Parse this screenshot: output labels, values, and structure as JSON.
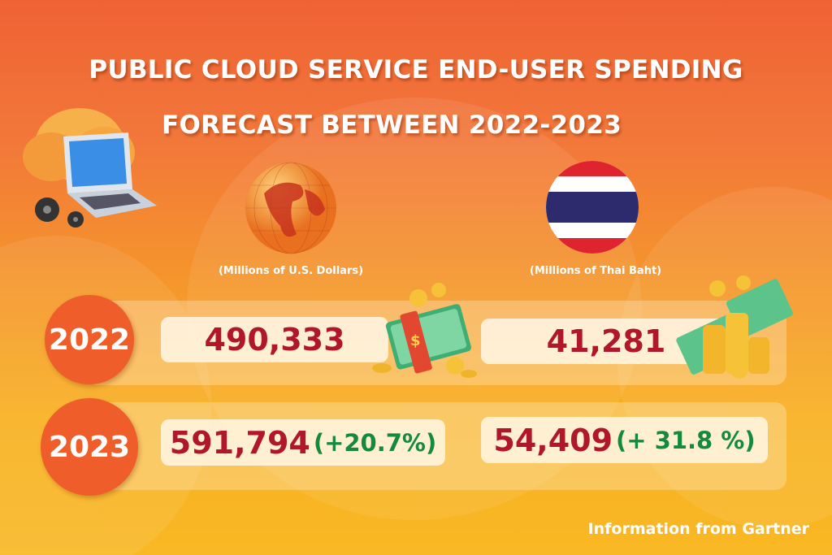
{
  "title": {
    "line1": "PUBLIC CLOUD SERVICE END-USER SPENDING",
    "line2": "FORECAST BETWEEN 2022-2023"
  },
  "columns": [
    {
      "unit": "(Millions of U.S. Dollars)",
      "icon": "globe-icon"
    },
    {
      "unit": "(Millions of Thai Baht)",
      "icon": "thailand-flag-icon"
    }
  ],
  "rows": [
    {
      "year": "2022",
      "usd": "490,333",
      "thb": "41,281"
    },
    {
      "year": "2023",
      "usd": "591,794",
      "usd_change": "(+20.7%)",
      "thb": "54,409",
      "thb_change": "(+ 31.8 %)"
    }
  ],
  "footer": "Information from Gartner",
  "colors": {
    "value": "#b0172a",
    "change": "#158a3c",
    "year_badge": "#ef5e2a"
  }
}
